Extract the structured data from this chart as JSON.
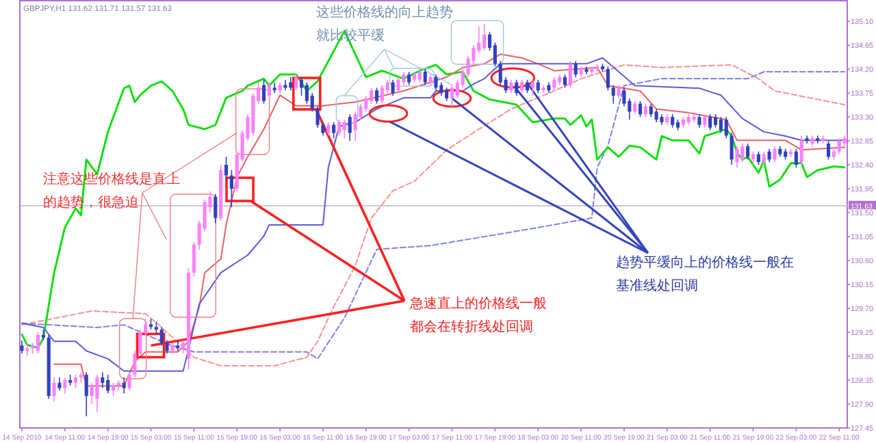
{
  "chart_data": {
    "type": "candlestick",
    "title": "GBPJPY,H1  131.62 131.71 131.57 131.63",
    "categories": [
      "14 Sep 2010",
      null,
      null,
      null,
      null,
      null,
      null,
      null,
      "14 Sep 11:00",
      null,
      null,
      null,
      null,
      null,
      null,
      null,
      "14 Sep 19:00",
      null,
      null,
      null,
      null,
      null,
      null,
      null,
      "15 Sep 03:00",
      null,
      null,
      null,
      null,
      null,
      null,
      null,
      "15 Sep 11:00",
      null,
      null,
      null,
      null,
      null,
      null,
      null,
      "15 Sep 19:00",
      null,
      null,
      null,
      null,
      null,
      null,
      null,
      "16 Sep 03:00",
      null,
      null,
      null,
      null,
      null,
      null,
      null,
      "16 Sep 11:00",
      null,
      null,
      null,
      null,
      null,
      null,
      null,
      "16 Sep 19:00",
      null,
      null,
      null,
      null,
      null,
      null,
      null,
      "17 Sep 03:00",
      null,
      null,
      null,
      null,
      null,
      null,
      null,
      "17 Sep 11:00",
      null,
      null,
      null,
      null,
      null,
      null,
      null,
      "17 Sep 19:00",
      null,
      null,
      null,
      null,
      null,
      null,
      null,
      "18 Sep 03:00",
      null,
      null,
      null,
      null,
      null,
      null,
      null,
      "20 Sep 11:00",
      null,
      null,
      null,
      null,
      null,
      null,
      null,
      "20 Sep 19:00",
      null,
      null,
      null,
      null,
      null,
      null,
      null,
      "21 Sep 03:00",
      null,
      null,
      null,
      null,
      null,
      null,
      null,
      "21 Sep 11:00",
      null,
      null,
      null,
      null,
      null,
      null,
      null,
      "21 Sep 19:00",
      null,
      null,
      null,
      null,
      null,
      null,
      null,
      "22 Sep 03:00",
      null,
      null,
      null,
      null,
      null,
      null,
      null,
      "22 Sep 11:00",
      null
    ],
    "ylim": [
      127.45,
      135.5
    ],
    "yticks": [
      127.45,
      {
        "value": 127.9,
        "label": "127.90"
      },
      128.35,
      {
        "value": 128.8,
        "label": "128.80"
      },
      129.25,
      {
        "value": 129.7,
        "label": "129.70"
      },
      130.15,
      {
        "value": 130.6,
        "label": "130.60"
      },
      131.05,
      {
        "value": 131.5,
        "label": "131.50"
      },
      131.95,
      {
        "value": 132.4,
        "label": "132.40"
      },
      132.85,
      {
        "value": 133.3,
        "label": "133.30"
      },
      133.75,
      {
        "value": 134.2,
        "label": "134.20"
      },
      134.65,
      {
        "value": 135.1,
        "label": "135.10"
      }
    ],
    "ohlc": [
      [
        129.0,
        129.1,
        128.85,
        128.9
      ],
      [
        128.9,
        129.05,
        128.8,
        128.95
      ],
      [
        128.95,
        129.05,
        128.85,
        129.0
      ],
      [
        128.9,
        129.25,
        128.85,
        129.2
      ],
      [
        129.2,
        129.3,
        129.1,
        129.15
      ],
      [
        129.15,
        129.2,
        128.0,
        128.05
      ],
      [
        128.05,
        128.4,
        127.95,
        128.3
      ],
      [
        128.3,
        128.4,
        128.15,
        128.2
      ],
      [
        128.2,
        128.4,
        128.1,
        128.35
      ],
      [
        128.35,
        128.45,
        128.25,
        128.3
      ],
      [
        128.3,
        128.45,
        128.2,
        128.4
      ],
      [
        128.4,
        128.5,
        128.3,
        128.45
      ],
      [
        128.45,
        128.5,
        127.67,
        128.05
      ],
      [
        128.05,
        128.3,
        127.9,
        128.25
      ],
      [
        128.0,
        128.45,
        127.75,
        128.4
      ],
      [
        128.4,
        128.5,
        128.2,
        128.3
      ],
      [
        128.35,
        128.45,
        128.1,
        128.15
      ],
      [
        128.15,
        128.3,
        128.05,
        128.25
      ],
      [
        128.25,
        128.35,
        128.15,
        128.3
      ],
      [
        128.3,
        128.4,
        128.1,
        128.2
      ],
      [
        128.2,
        128.5,
        128.15,
        128.45
      ],
      [
        128.45,
        128.9,
        128.4,
        128.85
      ],
      [
        128.85,
        129.3,
        128.8,
        129.25
      ],
      [
        129.25,
        129.5,
        129.2,
        129.4
      ],
      [
        129.4,
        129.5,
        129.3,
        129.35
      ],
      [
        129.35,
        129.45,
        129.2,
        129.3
      ],
      [
        129.3,
        129.35,
        129.0,
        129.05
      ],
      [
        129.05,
        129.1,
        128.85,
        128.9
      ],
      [
        128.9,
        129.05,
        128.85,
        129.0
      ],
      [
        129.0,
        129.1,
        128.9,
        128.95
      ],
      [
        128.95,
        129.1,
        128.85,
        129.05
      ],
      [
        128.75,
        130.45,
        128.55,
        130.37
      ],
      [
        130.37,
        130.95,
        130.3,
        130.9
      ],
      [
        130.9,
        131.35,
        130.8,
        131.3
      ],
      [
        131.2,
        131.75,
        131.15,
        131.7
      ],
      [
        131.6,
        131.9,
        131.5,
        131.8
      ],
      [
        131.8,
        131.85,
        131.3,
        131.4
      ],
      [
        131.4,
        132.4,
        131.35,
        132.3
      ],
      [
        132.4,
        132.55,
        132.1,
        132.2
      ],
      [
        132.2,
        132.3,
        131.6,
        131.95
      ],
      [
        131.95,
        132.65,
        131.9,
        132.6
      ],
      [
        132.5,
        133.05,
        132.45,
        133.0
      ],
      [
        132.9,
        133.35,
        132.85,
        133.3
      ],
      [
        133.0,
        133.75,
        132.95,
        133.7
      ],
      [
        133.6,
        133.95,
        133.55,
        133.85
      ],
      [
        133.9,
        134.0,
        133.55,
        133.6
      ],
      [
        133.7,
        133.95,
        133.65,
        133.9
      ],
      [
        133.85,
        133.95,
        133.75,
        133.8
      ],
      [
        133.8,
        133.95,
        133.75,
        133.9
      ],
      [
        133.9,
        134.0,
        133.8,
        133.85
      ],
      [
        133.95,
        134.05,
        133.8,
        133.85
      ],
      [
        133.85,
        134.1,
        133.8,
        134.05
      ],
      [
        134.0,
        134.05,
        133.7,
        133.85
      ],
      [
        133.9,
        133.95,
        133.55,
        133.6
      ],
      [
        133.7,
        133.75,
        133.4,
        133.45
      ],
      [
        133.45,
        133.5,
        133.1,
        133.15
      ],
      [
        133.15,
        133.2,
        132.95,
        133.0
      ],
      [
        133.0,
        133.2,
        132.95,
        133.15
      ],
      [
        133.15,
        133.2,
        132.9,
        133.0
      ],
      [
        133.0,
        133.25,
        132.95,
        133.2
      ],
      [
        133.05,
        133.25,
        132.9,
        133.2
      ],
      [
        133.3,
        133.35,
        132.85,
        133.0
      ],
      [
        133.05,
        133.4,
        132.85,
        133.35
      ],
      [
        133.3,
        133.55,
        133.25,
        133.5
      ],
      [
        133.45,
        133.7,
        133.4,
        133.65
      ],
      [
        133.6,
        133.85,
        133.55,
        133.8
      ],
      [
        133.8,
        133.85,
        133.55,
        133.6
      ],
      [
        133.6,
        133.9,
        133.55,
        133.85
      ],
      [
        133.8,
        134.0,
        133.75,
        133.95
      ],
      [
        133.95,
        134.0,
        133.7,
        133.75
      ],
      [
        133.8,
        134.05,
        133.75,
        134.0
      ],
      [
        133.95,
        134.15,
        133.9,
        134.1
      ],
      [
        134.1,
        134.15,
        133.9,
        133.95
      ],
      [
        134.0,
        134.15,
        133.95,
        134.1
      ],
      [
        134.0,
        134.2,
        133.95,
        134.15
      ],
      [
        134.15,
        134.2,
        133.9,
        133.95
      ],
      [
        133.95,
        134.1,
        133.9,
        134.05
      ],
      [
        134.05,
        134.1,
        133.8,
        133.85
      ],
      [
        133.9,
        133.95,
        133.7,
        133.75
      ],
      [
        133.8,
        133.85,
        133.6,
        133.65
      ],
      [
        133.65,
        133.9,
        133.5,
        133.85
      ],
      [
        133.7,
        134.0,
        133.65,
        133.95
      ],
      [
        133.9,
        134.2,
        133.85,
        134.15
      ],
      [
        134.1,
        134.45,
        134.05,
        134.4
      ],
      [
        134.35,
        134.65,
        134.3,
        134.6
      ],
      [
        134.55,
        135.0,
        134.5,
        134.7
      ],
      [
        134.6,
        135.05,
        134.55,
        134.85
      ],
      [
        134.85,
        134.9,
        134.55,
        134.6
      ],
      [
        134.65,
        134.7,
        134.25,
        134.3
      ],
      [
        134.3,
        134.35,
        133.9,
        133.95
      ],
      [
        134.0,
        134.05,
        133.75,
        133.8
      ],
      [
        133.8,
        134.0,
        133.75,
        133.95
      ],
      [
        133.95,
        134.0,
        133.7,
        133.75
      ],
      [
        133.8,
        134.0,
        133.75,
        133.95
      ],
      [
        133.95,
        134.0,
        133.75,
        133.8
      ],
      [
        133.85,
        134.0,
        133.7,
        133.95
      ],
      [
        133.95,
        134.0,
        133.75,
        133.8
      ],
      [
        133.8,
        133.9,
        133.75,
        133.85
      ],
      [
        133.9,
        133.95,
        133.75,
        133.8
      ],
      [
        133.85,
        134.05,
        133.8,
        134.0
      ],
      [
        133.95,
        134.1,
        133.9,
        134.05
      ],
      [
        134.05,
        134.1,
        133.85,
        133.9
      ],
      [
        133.9,
        134.35,
        133.85,
        134.3
      ],
      [
        134.3,
        134.35,
        134.05,
        134.1
      ],
      [
        134.1,
        134.25,
        134.05,
        134.2
      ],
      [
        134.2,
        134.25,
        134.1,
        134.15
      ],
      [
        134.15,
        134.25,
        134.1,
        134.2
      ],
      [
        134.2,
        134.3,
        134.15,
        134.25
      ],
      [
        134.25,
        134.3,
        134.15,
        134.2
      ],
      [
        134.2,
        134.25,
        133.8,
        133.85
      ],
      [
        133.85,
        133.9,
        133.55,
        133.7
      ],
      [
        133.7,
        133.9,
        133.65,
        133.85
      ],
      [
        133.8,
        133.85,
        133.5,
        133.55
      ],
      [
        133.6,
        133.65,
        133.25,
        133.4
      ],
      [
        133.4,
        133.6,
        133.35,
        133.55
      ],
      [
        133.55,
        133.6,
        133.3,
        133.35
      ],
      [
        133.35,
        133.55,
        133.3,
        133.5
      ],
      [
        133.5,
        133.55,
        133.3,
        133.35
      ],
      [
        133.4,
        133.45,
        133.2,
        133.25
      ],
      [
        133.3,
        133.35,
        133.15,
        133.2
      ],
      [
        133.2,
        133.35,
        133.15,
        133.3
      ],
      [
        133.3,
        133.35,
        133.1,
        133.15
      ],
      [
        133.2,
        133.25,
        133.05,
        133.1
      ],
      [
        133.15,
        133.3,
        133.1,
        133.25
      ],
      [
        133.2,
        133.35,
        133.15,
        133.3
      ],
      [
        133.25,
        133.4,
        133.2,
        133.3
      ],
      [
        133.3,
        133.35,
        133.1,
        133.15
      ],
      [
        133.15,
        133.35,
        133.1,
        133.3
      ],
      [
        133.3,
        133.35,
        133.05,
        133.1
      ],
      [
        133.3,
        133.35,
        133.1,
        133.15
      ],
      [
        133.25,
        133.3,
        133.0,
        133.05
      ],
      [
        133.25,
        133.3,
        132.9,
        132.95
      ],
      [
        132.95,
        133.0,
        132.4,
        132.5
      ],
      [
        132.45,
        132.75,
        132.35,
        132.7
      ],
      [
        132.5,
        132.8,
        132.45,
        132.75
      ],
      [
        132.75,
        132.8,
        132.5,
        132.55
      ],
      [
        132.5,
        132.65,
        132.4,
        132.6
      ],
      [
        132.6,
        132.65,
        132.4,
        132.45
      ],
      [
        132.45,
        132.65,
        132.4,
        132.6
      ],
      [
        132.65,
        132.7,
        132.45,
        132.5
      ],
      [
        132.5,
        132.75,
        132.45,
        132.7
      ],
      [
        132.7,
        132.75,
        132.55,
        132.6
      ],
      [
        132.65,
        132.7,
        132.5,
        132.55
      ],
      [
        132.6,
        132.7,
        132.55,
        132.65
      ],
      [
        132.65,
        132.7,
        132.35,
        132.4
      ],
      [
        132.45,
        132.95,
        132.35,
        132.85
      ],
      [
        132.9,
        132.95,
        132.8,
        132.85
      ],
      [
        132.8,
        132.95,
        132.75,
        132.9
      ],
      [
        132.9,
        132.95,
        132.8,
        132.85
      ],
      [
        132.85,
        132.95,
        132.8,
        132.9
      ],
      [
        132.8,
        132.85,
        132.5,
        132.55
      ],
      [
        132.55,
        132.7,
        132.5,
        132.65
      ],
      [
        132.65,
        132.9,
        132.6,
        132.85
      ],
      [
        132.8,
        132.95,
        132.75,
        132.9
      ]
    ],
    "colors": [
      "#3040c0",
      "#ff80ff",
      "#ff80ff",
      "#ff80ff",
      "#3040c0",
      "#3040c0",
      "#ff80ff",
      "#3040c0",
      "#ff80ff",
      "#3040c0",
      "#ff80ff",
      "#ff80ff",
      "#3040c0",
      "#ff80ff",
      "#ff80ff",
      "#3040c0",
      "#3040c0",
      "#ff80ff",
      "#ff80ff",
      "#3040c0",
      "#ff80ff",
      "#ff80ff",
      "#ff80ff",
      "#ff80ff",
      "#3040c0",
      "#3040c0",
      "#3040c0",
      "#3040c0",
      "#ff80ff",
      "#3040c0",
      "#ff80ff",
      "#ff80ff",
      "#ff80ff",
      "#ff80ff",
      "#ff80ff",
      "#ff80ff",
      "#3040c0",
      "#ff80ff",
      "#3040c0",
      "#3040c0",
      "#ff80ff",
      "#ff80ff",
      "#ff80ff",
      "#ff80ff",
      "#ff80ff",
      "#3040c0",
      "#ff80ff",
      "#3040c0",
      "#ff80ff",
      "#3040c0",
      "#3040c0",
      "#ff80ff",
      "#3040c0",
      "#3040c0",
      "#3040c0",
      "#3040c0",
      "#3040c0",
      "#ff80ff",
      "#3040c0",
      "#ff80ff",
      "#ff80ff",
      "#3040c0",
      "#ff80ff",
      "#ff80ff",
      "#ff80ff",
      "#ff80ff",
      "#3040c0",
      "#ff80ff",
      "#ff80ff",
      "#3040c0",
      "#ff80ff",
      "#ff80ff",
      "#3040c0",
      "#ff80ff",
      "#ff80ff",
      "#3040c0",
      "#ff80ff",
      "#3040c0",
      "#3040c0",
      "#3040c0",
      "#ff80ff",
      "#ff80ff",
      "#ff80ff",
      "#ff80ff",
      "#ff80ff",
      "#ff80ff",
      "#ff80ff",
      "#3040c0",
      "#3040c0",
      "#3040c0",
      "#3040c0",
      "#ff80ff",
      "#3040c0",
      "#ff80ff",
      "#3040c0",
      "#ff80ff",
      "#3040c0",
      "#ff80ff",
      "#3040c0",
      "#ff80ff",
      "#ff80ff",
      "#3040c0",
      "#ff80ff",
      "#3040c0",
      "#ff80ff",
      "#3040c0",
      "#ff80ff",
      "#ff80ff",
      "#3040c0",
      "#3040c0",
      "#3040c0",
      "#ff80ff",
      "#3040c0",
      "#3040c0",
      "#ff80ff",
      "#3040c0",
      "#ff80ff",
      "#3040c0",
      "#3040c0",
      "#3040c0",
      "#ff80ff",
      "#3040c0",
      "#3040c0",
      "#ff80ff",
      "#ff80ff",
      "#ff80ff",
      "#3040c0",
      "#ff80ff",
      "#3040c0",
      "#3040c0",
      "#3040c0",
      "#3040c0",
      "#3040c0",
      "#ff80ff",
      "#ff80ff",
      "#3040c0",
      "#ff80ff",
      "#3040c0",
      "#ff80ff",
      "#3040c0",
      "#ff80ff",
      "#3040c0",
      "#3040c0",
      "#ff80ff",
      "#3040c0",
      "#ff80ff",
      "#3040c0",
      "#ff80ff",
      "#3040c0",
      "#ff80ff",
      "#3040c0",
      "#ff80ff",
      "#ff80ff",
      "#ff80ff"
    ],
    "series": [
      {
        "type": "line",
        "color": "#ff9090",
        "line_style": "dashed",
        "values": [
          129.39,
          null,
          null,
          null,
          null,
          null,
          null,
          null,
          null,
          null,
          null,
          null,
          null,
          129.65,
          null,
          null,
          null,
          null,
          null,
          null,
          null,
          null,
          null,
          129.6,
          null,
          null,
          129.34,
          null,
          null,
          null,
          null,
          null,
          128.78,
          null,
          null,
          null,
          null,
          128.62,
          null,
          null,
          null,
          null,
          null,
          null,
          null,
          null,
          null,
          128.62,
          null,
          null,
          null,
          null,
          null,
          128.78,
          null,
          129.08,
          null,
          null,
          129.73,
          null,
          null,
          null,
          130.5,
          null,
          null,
          131.4,
          null,
          null,
          null,
          131.91,
          null,
          null,
          null,
          132.09,
          null,
          null,
          null,
          null,
          null,
          132.68,
          null,
          null,
          null,
          null,
          null,
          133.07,
          null,
          null,
          null,
          null,
          null,
          133.45,
          null,
          null,
          null,
          null,
          null,
          null,
          null,
          133.79,
          null,
          null,
          null,
          null,
          134.02,
          null,
          null,
          null,
          null,
          null,
          null,
          null,
          134.28,
          null,
          null,
          null,
          null,
          null,
          null,
          134.23,
          null,
          null,
          null,
          null,
          null,
          null,
          null,
          null,
          null,
          null,
          null,
          null,
          134.28,
          null,
          null,
          null,
          null,
          134.02,
          null,
          null,
          133.79,
          null,
          null,
          null,
          null,
          null,
          null,
          null,
          null,
          null,
          null,
          null,
          null,
          133.53
        ]
      },
      {
        "type": "line",
        "color": "#8080f0",
        "line_style": "dashed",
        "values": [
          129.42,
          null,
          null,
          null,
          null,
          null,
          null,
          null,
          null,
          null,
          null,
          null,
          null,
          null,
          129.34,
          null,
          null,
          null,
          null,
          129.39,
          null,
          null,
          null,
          129.21,
          null,
          null,
          null,
          129.03,
          null,
          null,
          null,
          null,
          128.88,
          null,
          null,
          null,
          null,
          null,
          null,
          null,
          null,
          null,
          null,
          null,
          null,
          null,
          null,
          null,
          null,
          null,
          null,
          null,
          null,
          128.88,
          null,
          128.75,
          null,
          null,
          null,
          null,
          129.52,
          null,
          null,
          null,
          null,
          null,
          130.81,
          null,
          null,
          null,
          null,
          null,
          null,
          null,
          null,
          null,
          130.88,
          null,
          null,
          null,
          null,
          null,
          null,
          null,
          null,
          null,
          null,
          null,
          null,
          null,
          null,
          null,
          null,
          null,
          null,
          null,
          131.22,
          null,
          null,
          null,
          null,
          null,
          null,
          null,
          null,
          null,
          131.4,
          132.35,
          null,
          132.76,
          null,
          null,
          133.89,
          null,
          null,
          null,
          null,
          null,
          null,
          134.02,
          null,
          null,
          null,
          null,
          null,
          null,
          null,
          null,
          null,
          null,
          null,
          null,
          null,
          null,
          null,
          134.02,
          null,
          null,
          134.15,
          null,
          null,
          null,
          null,
          null,
          null,
          null,
          null,
          null,
          null,
          null,
          null,
          null,
          null,
          134.15
        ]
      },
      {
        "type": "line",
        "color": "#00e000",
        "line_style": "solid",
        "values": [
          129.21,
          129.01,
          null,
          128.96,
          129.14,
          null,
          130.37,
          null,
          131.22,
          null,
          131.58,
          131.45,
          132.5,
          null,
          132.22,
          null,
          133.02,
          null,
          null,
          133.84,
          133.89,
          133.58,
          133.71,
          null,
          133.89,
          null,
          133.97,
          null,
          133.79,
          null,
          133.45,
          133.15,
          null,
          null,
          133.07,
          null,
          133.15,
          null,
          133.66,
          null,
          null,
          133.79,
          133.89,
          null,
          null,
          134.02,
          133.89,
          null,
          134.1,
          null,
          null,
          134.1,
          null,
          133.79,
          null,
          133.97,
          null,
          134.35,
          null,
          null,
          134.92,
          null,
          134.48,
          null,
          134.05,
          null,
          null,
          134.17,
          null,
          null,
          null,
          134.02,
          null,
          null,
          134.17,
          null,
          null,
          134.28,
          null,
          134.1,
          null,
          null,
          134.15,
          null,
          133.79,
          null,
          null,
          133.63,
          null,
          null,
          null,
          null,
          133.53,
          null,
          null,
          133.2,
          null,
          null,
          null,
          133.27,
          null,
          133.27,
          133.15,
          null,
          133.33,
          133.12,
          133.25,
          132.5,
          null,
          132.73,
          null,
          132.55,
          null,
          132.76,
          null,
          132.73,
          null,
          null,
          132.5,
          132.94,
          null,
          132.86,
          null,
          null,
          132.86,
          null,
          132.61,
          132.94,
          null,
          null,
          null,
          133.07,
          132.94,
          132.63,
          132.5,
          132.55,
          null,
          132.25,
          132.48,
          131.99,
          null,
          132.12,
          null,
          132.43,
          null,
          132.43,
          132.17,
          null,
          132.3,
          null,
          null,
          132.37,
          null,
          132.35
        ]
      },
      {
        "type": "line",
        "color": "#f06060",
        "line_style": "solid",
        "values": [
          null,
          null,
          null,
          null,
          null,
          null,
          128.65,
          null,
          null,
          null,
          null,
          128.65,
          128.24,
          null,
          null,
          null,
          null,
          null,
          null,
          128.24,
          null,
          128.7,
          null,
          128.88,
          null,
          null,
          null,
          null,
          null,
          128.88,
          null,
          129.08,
          null,
          129.73,
          130.37,
          null,
          null,
          130.63,
          131.27,
          null,
          132.17,
          null,
          132.55,
          null,
          null,
          133.07,
          null,
          null,
          133.71,
          null,
          null,
          133.51,
          null,
          null,
          null,
          null,
          133.51,
          null,
          null,
          null,
          null,
          null,
          133.58,
          null,
          null,
          null,
          null,
          null,
          null,
          null,
          null,
          133.79,
          null,
          null,
          null,
          null,
          null,
          null,
          null,
          134.05,
          null,
          null,
          134.23,
          null,
          null,
          null,
          134.3,
          null,
          null,
          134.48,
          null,
          null,
          null,
          134.41,
          null,
          null,
          134.3,
          null,
          null,
          134.17,
          null,
          null,
          null,
          null,
          null,
          null,
          null,
          134.23,
          null,
          133.89,
          null,
          null,
          null,
          null,
          null,
          133.79,
          null,
          null,
          133.45,
          null,
          null,
          null,
          null,
          null,
          133.38,
          null,
          null,
          null,
          null,
          null,
          null,
          133.25,
          null,
          132.86,
          null,
          null,
          null,
          null,
          null,
          null,
          null,
          null,
          132.86,
          null,
          null,
          132.68,
          null,
          null,
          null,
          null,
          null,
          null,
          null,
          132.73
        ]
      },
      {
        "type": "line",
        "color": "#5a5ae0",
        "line_style": "solid",
        "values": [
          129.42,
          null,
          null,
          null,
          129.34,
          null,
          129.08,
          null,
          null,
          null,
          129.08,
          null,
          128.9,
          null,
          null,
          null,
          128.75,
          null,
          null,
          128.52,
          null,
          null,
          null,
          null,
          null,
          null,
          null,
          null,
          null,
          null,
          128.52,
          null,
          null,
          129.78,
          null,
          null,
          null,
          130.37,
          null,
          null,
          null,
          null,
          130.7,
          null,
          null,
          131.06,
          131.27,
          null,
          null,
          null,
          null,
          null,
          null,
          null,
          null,
          null,
          131.27,
          132.35,
          null,
          133.12,
          null,
          null,
          133.2,
          null,
          null,
          null,
          133.45,
          null,
          null,
          null,
          null,
          133.66,
          null,
          null,
          null,
          null,
          133.66,
          133.79,
          null,
          null,
          null,
          null,
          133.79,
          null,
          133.92,
          null,
          134.02,
          null,
          null,
          134.3,
          null,
          null,
          null,
          null,
          null,
          null,
          null,
          null,
          null,
          null,
          null,
          null,
          null,
          null,
          null,
          134.3,
          null,
          null,
          134.41,
          null,
          null,
          134.15,
          null,
          null,
          133.89,
          null,
          null,
          null,
          null,
          null,
          null,
          null,
          null,
          null,
          null,
          null,
          133.84,
          null,
          null,
          null,
          133.71,
          null,
          null,
          null,
          133.27,
          null,
          null,
          null,
          133.02,
          null,
          null,
          null,
          132.94,
          null,
          null,
          132.86,
          null,
          null,
          null,
          null,
          null,
          null,
          null,
          132.86
        ]
      }
    ],
    "ref_lines": [
      {
        "axis": "y",
        "value": 131.63,
        "label": "131.63",
        "color": "#c8c8d8"
      }
    ],
    "annotations": [
      {
        "text": "注意这些价格线是直上的趋势，很急迫",
        "x": "15 Sep 19:00",
        "y": 133.0
      },
      {
        "text": "这些价格线的向上趋势就比较平缓",
        "x": "17 Sep 11:00",
        "y": 133.9
      },
      {
        "text": "急速直上的价格线一般都会在转折线处回调",
        "x": "15 Sep 03:00",
        "y": 129.0
      },
      {
        "text": "趋势平缓向上的价格线一般在基准线处回调",
        "x": "17 Sep 11:00",
        "y": 133.65
      }
    ]
  }
}
